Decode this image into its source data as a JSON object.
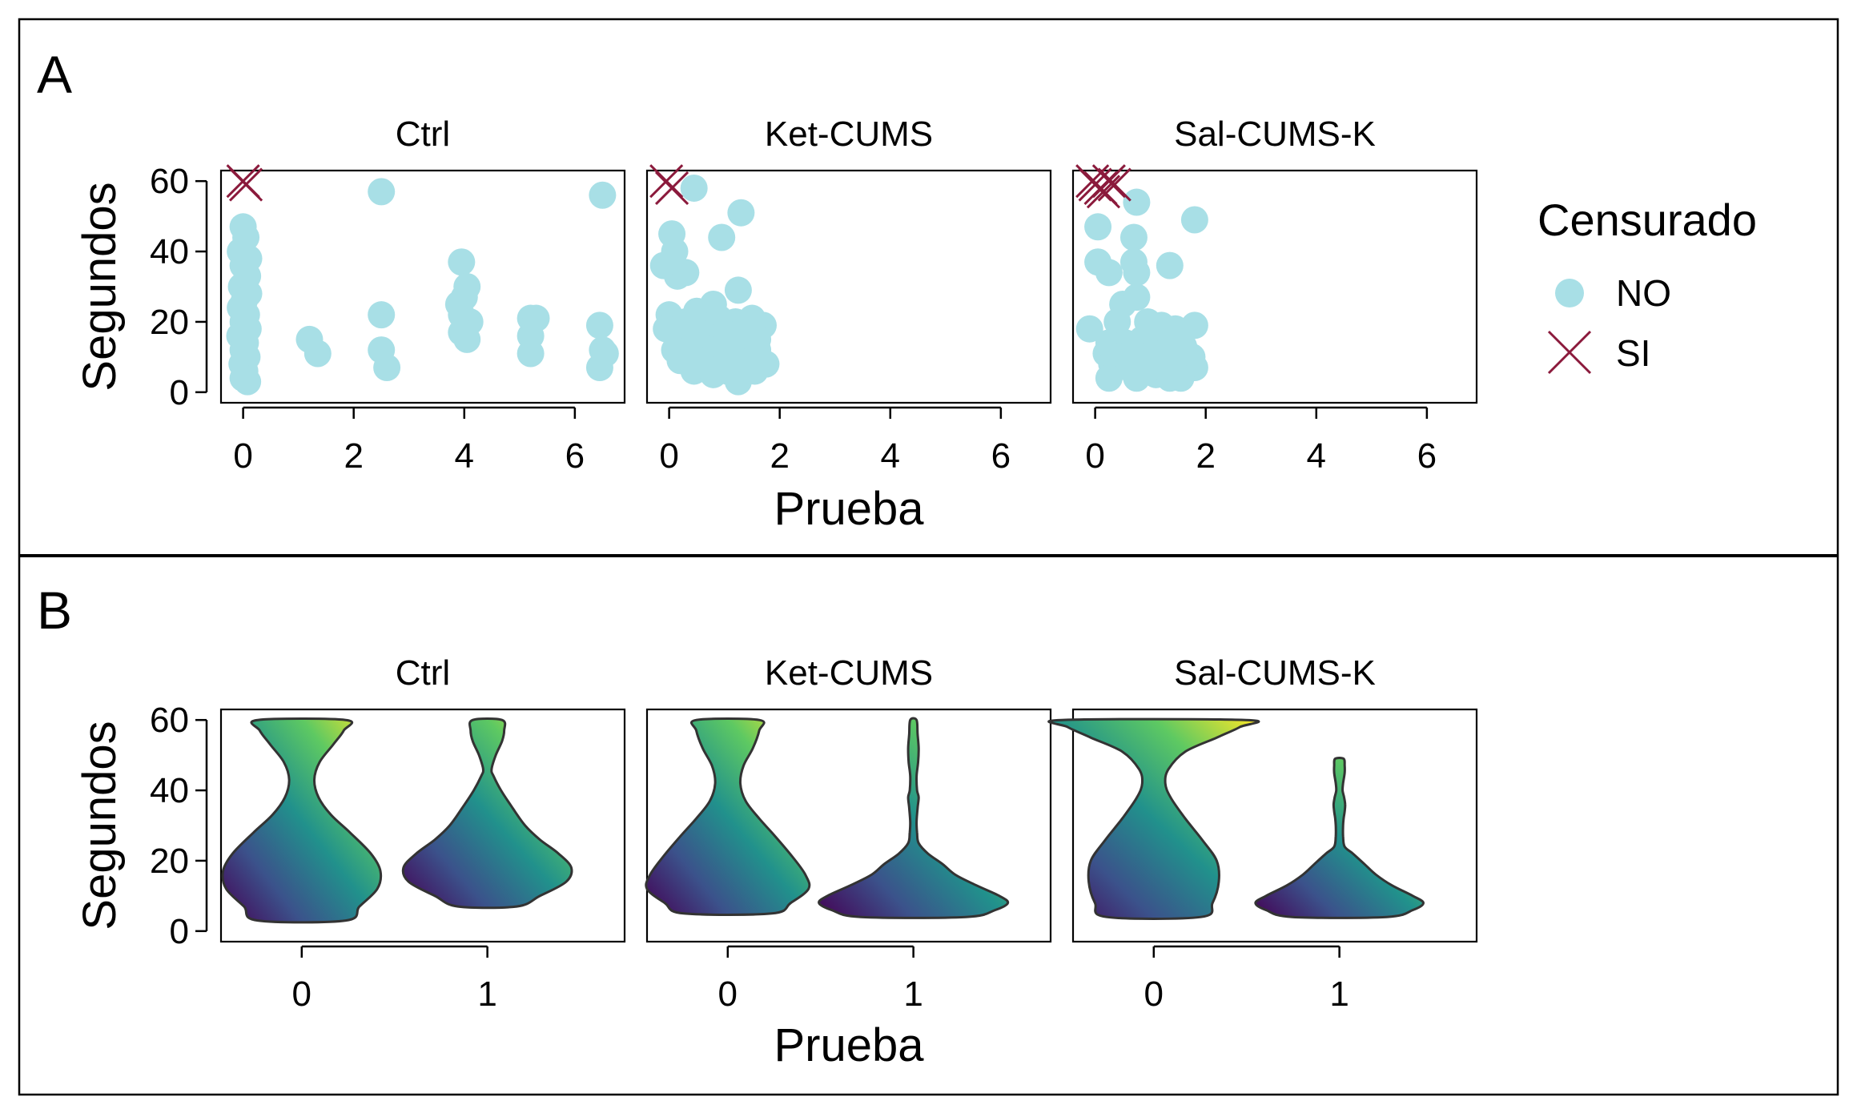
{
  "panels": [
    {
      "letter": "A"
    },
    {
      "letter": "B"
    }
  ],
  "facets": [
    "Ctrl",
    "Ket-CUMS",
    "Sal-CUMS-K"
  ],
  "legend": {
    "title": "Censurado",
    "entries": [
      {
        "label": "NO",
        "marker": "circle",
        "color": "#a8dfe6"
      },
      {
        "label": "SI",
        "marker": "x",
        "color": "#8b1a3c"
      }
    ]
  },
  "colors": {
    "no": "#a8dfe6",
    "si": "#8b1a3c",
    "viridis_low": "#440154",
    "viridis_mid": "#21918c",
    "viridis_high": "#fde725",
    "frame": "#000000",
    "violin_outline": "#333333"
  },
  "chart_data": [
    {
      "type": "scatter",
      "panel": "A",
      "xlabel": "Prueba",
      "ylabel": "Segundos",
      "xlim": [
        -0.4,
        6.9
      ],
      "ylim": [
        -3,
        63
      ],
      "xticks": [
        0,
        2,
        4,
        6
      ],
      "yticks": [
        0,
        20,
        40,
        60
      ],
      "grid": false,
      "legend_position": "right",
      "series": [
        {
          "name": "NO",
          "facet": "Ctrl",
          "points": [
            [
              0.0,
              47
            ],
            [
              0.05,
              44
            ],
            [
              -0.05,
              40
            ],
            [
              0.1,
              38
            ],
            [
              0.0,
              36
            ],
            [
              0.08,
              33
            ],
            [
              -0.03,
              30
            ],
            [
              0.1,
              28
            ],
            [
              0.02,
              26
            ],
            [
              -0.05,
              24
            ],
            [
              0.06,
              22
            ],
            [
              0.0,
              20
            ],
            [
              0.09,
              18
            ],
            [
              -0.06,
              16
            ],
            [
              0.04,
              14
            ],
            [
              0.0,
              12
            ],
            [
              0.07,
              10
            ],
            [
              -0.02,
              8
            ],
            [
              0.03,
              6
            ],
            [
              0.0,
              4
            ],
            [
              0.08,
              3
            ],
            [
              1.2,
              15
            ],
            [
              1.35,
              11
            ],
            [
              2.5,
              57
            ],
            [
              2.5,
              22
            ],
            [
              2.5,
              12
            ],
            [
              2.6,
              7
            ],
            [
              3.95,
              37
            ],
            [
              3.9,
              25
            ],
            [
              4.05,
              30
            ],
            [
              4.0,
              27
            ],
            [
              3.95,
              22
            ],
            [
              4.1,
              20
            ],
            [
              3.95,
              17
            ],
            [
              4.05,
              15
            ],
            [
              5.2,
              21
            ],
            [
              5.3,
              21
            ],
            [
              5.2,
              16
            ],
            [
              5.2,
              11
            ],
            [
              6.5,
              56
            ],
            [
              6.45,
              19
            ],
            [
              6.5,
              12
            ],
            [
              6.55,
              11
            ],
            [
              6.45,
              7
            ]
          ]
        },
        {
          "name": "SI",
          "facet": "Ctrl",
          "points": [
            [
              0.0,
              60
            ],
            [
              0.05,
              59
            ]
          ]
        },
        {
          "name": "NO",
          "facet": "Ket-CUMS",
          "points": [
            [
              0.45,
              58
            ],
            [
              1.3,
              51
            ],
            [
              0.05,
              45
            ],
            [
              0.1,
              40
            ],
            [
              0.95,
              44
            ],
            [
              -0.1,
              36
            ],
            [
              0.15,
              33
            ],
            [
              0.3,
              34
            ],
            [
              1.25,
              29
            ],
            [
              0.8,
              25
            ],
            [
              0.5,
              23
            ],
            [
              0.0,
              22
            ],
            [
              0.3,
              20
            ],
            [
              0.6,
              19
            ],
            [
              0.9,
              21
            ],
            [
              1.2,
              20
            ],
            [
              1.5,
              21
            ],
            [
              1.7,
              19
            ],
            [
              -0.05,
              18
            ],
            [
              0.2,
              16
            ],
            [
              0.45,
              15
            ],
            [
              0.7,
              16
            ],
            [
              1.0,
              17
            ],
            [
              1.3,
              16
            ],
            [
              1.6,
              15
            ],
            [
              0.1,
              12
            ],
            [
              0.35,
              11
            ],
            [
              0.6,
              13
            ],
            [
              0.85,
              12
            ],
            [
              1.1,
              12
            ],
            [
              1.35,
              11
            ],
            [
              1.6,
              12
            ],
            [
              0.2,
              9
            ],
            [
              0.5,
              8
            ],
            [
              0.75,
              9
            ],
            [
              1.0,
              8
            ],
            [
              1.25,
              9
            ],
            [
              1.5,
              8
            ],
            [
              1.75,
              8
            ],
            [
              0.45,
              6
            ],
            [
              0.8,
              5
            ],
            [
              1.05,
              6
            ],
            [
              1.3,
              5
            ],
            [
              1.55,
              6
            ],
            [
              1.25,
              3
            ]
          ]
        },
        {
          "name": "SI",
          "facet": "Ket-CUMS",
          "points": [
            [
              -0.05,
              60
            ],
            [
              0.05,
              58
            ]
          ]
        },
        {
          "name": "NO",
          "facet": "Sal-CUMS-K",
          "points": [
            [
              0.75,
              54
            ],
            [
              1.8,
              49
            ],
            [
              0.05,
              47
            ],
            [
              0.7,
              44
            ],
            [
              0.05,
              37
            ],
            [
              1.35,
              36
            ],
            [
              0.7,
              37
            ],
            [
              0.25,
              34
            ],
            [
              0.75,
              34
            ],
            [
              0.5,
              25
            ],
            [
              0.75,
              27
            ],
            [
              0.4,
              20
            ],
            [
              0.95,
              20
            ],
            [
              1.2,
              19
            ],
            [
              1.45,
              18
            ],
            [
              1.8,
              19
            ],
            [
              -0.1,
              18
            ],
            [
              0.25,
              14
            ],
            [
              0.55,
              14
            ],
            [
              0.85,
              15
            ],
            [
              1.1,
              13
            ],
            [
              1.35,
              14
            ],
            [
              1.6,
              13
            ],
            [
              0.2,
              11
            ],
            [
              0.45,
              10
            ],
            [
              0.7,
              12
            ],
            [
              0.95,
              10
            ],
            [
              1.2,
              11
            ],
            [
              1.5,
              10
            ],
            [
              1.75,
              10
            ],
            [
              0.3,
              8
            ],
            [
              0.6,
              7
            ],
            [
              0.9,
              7
            ],
            [
              1.15,
              8
            ],
            [
              1.45,
              7
            ],
            [
              1.8,
              7
            ],
            [
              0.25,
              4
            ],
            [
              0.75,
              4
            ],
            [
              1.1,
              5
            ],
            [
              1.35,
              4
            ],
            [
              1.55,
              4
            ]
          ]
        },
        {
          "name": "SI",
          "facet": "Sal-CUMS-K",
          "points": [
            [
              -0.05,
              60
            ],
            [
              0.1,
              58
            ],
            [
              0.25,
              60
            ],
            [
              0.35,
              59
            ],
            [
              0.15,
              57
            ],
            [
              0.0,
              59
            ]
          ]
        }
      ]
    },
    {
      "type": "violin",
      "panel": "B",
      "xlabel": "Prueba",
      "ylabel": "Segundos",
      "categories": [
        "0",
        "1"
      ],
      "ylim": [
        -3,
        63
      ],
      "yticks": [
        0,
        20,
        40,
        60
      ],
      "grid": false,
      "series": [
        {
          "facet": "Ctrl",
          "category": "0",
          "min": 3,
          "max": 60,
          "profile": [
            [
              3,
              0.42
            ],
            [
              7,
              0.55
            ],
            [
              12,
              0.72
            ],
            [
              17,
              0.75
            ],
            [
              22,
              0.66
            ],
            [
              28,
              0.46
            ],
            [
              33,
              0.28
            ],
            [
              38,
              0.16
            ],
            [
              43,
              0.12
            ],
            [
              48,
              0.17
            ],
            [
              53,
              0.3
            ],
            [
              57,
              0.4
            ],
            [
              60,
              0.42
            ]
          ]
        },
        {
          "facet": "Ctrl",
          "category": "1",
          "min": 7,
          "max": 60,
          "profile": [
            [
              7,
              0.28
            ],
            [
              10,
              0.5
            ],
            [
              14,
              0.75
            ],
            [
              18,
              0.8
            ],
            [
              22,
              0.68
            ],
            [
              26,
              0.5
            ],
            [
              30,
              0.36
            ],
            [
              35,
              0.24
            ],
            [
              40,
              0.13
            ],
            [
              44,
              0.06
            ],
            [
              46,
              0.04
            ],
            [
              50,
              0.08
            ],
            [
              54,
              0.14
            ],
            [
              57,
              0.16
            ],
            [
              60,
              0.14
            ]
          ]
        },
        {
          "facet": "Ket-CUMS",
          "category": "0",
          "min": 5,
          "max": 60,
          "profile": [
            [
              5,
              0.42
            ],
            [
              8,
              0.6
            ],
            [
              12,
              0.77
            ],
            [
              16,
              0.74
            ],
            [
              21,
              0.62
            ],
            [
              27,
              0.45
            ],
            [
              32,
              0.3
            ],
            [
              37,
              0.17
            ],
            [
              42,
              0.12
            ],
            [
              47,
              0.15
            ],
            [
              52,
              0.24
            ],
            [
              57,
              0.3
            ],
            [
              60,
              0.3
            ]
          ]
        },
        {
          "facet": "Ket-CUMS",
          "category": "1",
          "min": 4,
          "max": 60,
          "profile": [
            [
              4,
              0.5
            ],
            [
              6,
              0.78
            ],
            [
              8,
              0.9
            ],
            [
              10,
              0.82
            ],
            [
              13,
              0.6
            ],
            [
              16,
              0.4
            ],
            [
              19,
              0.28
            ],
            [
              22,
              0.14
            ],
            [
              25,
              0.05
            ],
            [
              28,
              0.035
            ],
            [
              31,
              0.03
            ],
            [
              35,
              0.04
            ],
            [
              38,
              0.05
            ],
            [
              40,
              0.035
            ],
            [
              44,
              0.03
            ],
            [
              48,
              0.045
            ],
            [
              52,
              0.05
            ],
            [
              56,
              0.04
            ],
            [
              60,
              0.03
            ]
          ]
        },
        {
          "facet": "Sal-CUMS-K",
          "category": "0",
          "min": 4,
          "max": 60,
          "profile": [
            [
              4,
              0.45
            ],
            [
              8,
              0.56
            ],
            [
              14,
              0.62
            ],
            [
              20,
              0.6
            ],
            [
              26,
              0.46
            ],
            [
              32,
              0.3
            ],
            [
              38,
              0.16
            ],
            [
              42,
              0.11
            ],
            [
              46,
              0.14
            ],
            [
              51,
              0.3
            ],
            [
              55,
              0.6
            ],
            [
              58,
              0.82
            ],
            [
              60,
              0.88
            ]
          ]
        },
        {
          "facet": "Sal-CUMS-K",
          "category": "1",
          "min": 4,
          "max": 49,
          "profile": [
            [
              4,
              0.45
            ],
            [
              6,
              0.7
            ],
            [
              8,
              0.8
            ],
            [
              10,
              0.7
            ],
            [
              13,
              0.5
            ],
            [
              16,
              0.35
            ],
            [
              19,
              0.24
            ],
            [
              22,
              0.13
            ],
            [
              24,
              0.05
            ],
            [
              27,
              0.035
            ],
            [
              30,
              0.035
            ],
            [
              32,
              0.04
            ],
            [
              34,
              0.05
            ],
            [
              36,
              0.055
            ],
            [
              38,
              0.045
            ],
            [
              40,
              0.03
            ],
            [
              42,
              0.035
            ],
            [
              45,
              0.05
            ],
            [
              47,
              0.05
            ],
            [
              49,
              0.04
            ]
          ]
        }
      ]
    }
  ]
}
